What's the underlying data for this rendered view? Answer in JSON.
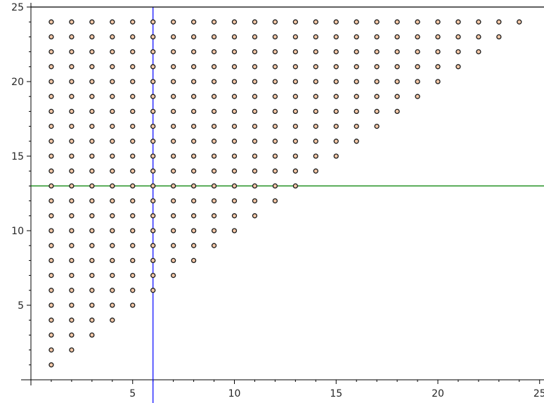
{
  "chart_data": {
    "type": "scatter",
    "title": "",
    "xlabel": "",
    "ylabel": "",
    "xlim": [
      0,
      25
    ],
    "ylim": [
      0,
      25
    ],
    "x_ticks": [
      5,
      10,
      15,
      20,
      25
    ],
    "y_ticks": [
      5,
      10,
      15,
      20,
      25
    ],
    "x_tick_labels": [
      "5",
      "10",
      "15",
      "20",
      "25"
    ],
    "y_tick_labels": [
      "5",
      "10",
      "15",
      "20",
      "25"
    ],
    "minor_tick_step": 1,
    "grid": false,
    "points": {
      "description_rule": "all integer (x, y) with 1 <= x <= y <= 24",
      "x_min": 1,
      "y_max": 24
    },
    "reference_lines": [
      {
        "orientation": "vertical",
        "x": 6,
        "color": "#0000ff"
      },
      {
        "orientation": "horizontal",
        "y": 13,
        "color": "#008000"
      },
      {
        "orientation": "horizontal",
        "y": 25,
        "color": "#000000"
      }
    ],
    "colors": {
      "marker_fill": "#f4c8a8",
      "marker_edge": "#1a1a1a",
      "axis": "#000000"
    }
  }
}
